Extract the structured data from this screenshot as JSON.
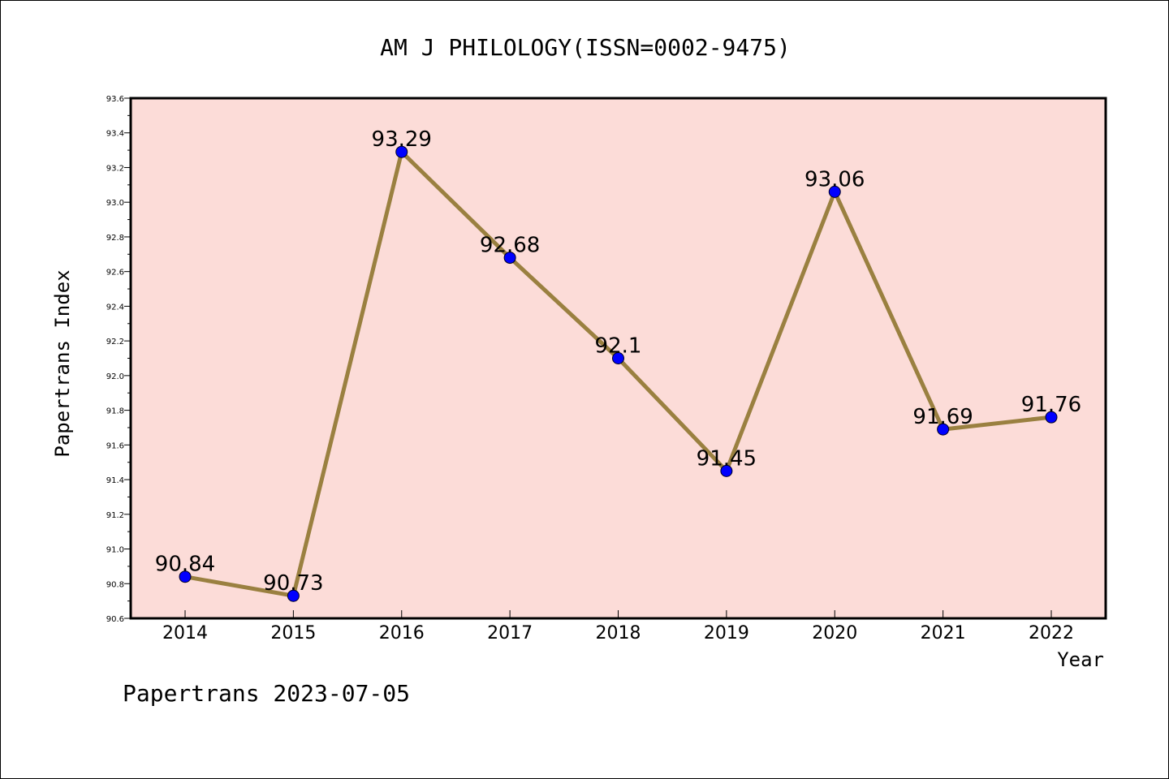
{
  "colors": {
    "plot_background": "#fcdcd8",
    "line": "#9a8040",
    "marker": "#0000ff",
    "frame": "#000000"
  },
  "footer": "Papertrans 2023-07-05",
  "chart_data": {
    "type": "line",
    "title": "AM J PHILOLOGY(ISSN=0002-9475)",
    "xlabel": "Year",
    "ylabel": "Papertrans Index",
    "categories": [
      "2014",
      "2015",
      "2016",
      "2017",
      "2018",
      "2019",
      "2020",
      "2021",
      "2022"
    ],
    "series": [
      {
        "values": [
          90.84,
          90.73,
          93.29,
          92.68,
          92.1,
          91.45,
          93.06,
          91.69,
          91.76
        ],
        "labels": [
          "90.84",
          "90.73",
          "93.29",
          "92.68",
          "92.1",
          "91.45",
          "93.06",
          "91.69",
          "91.76"
        ]
      }
    ],
    "ylim": [
      90.6,
      93.6
    ],
    "yticks": [
      "90.6",
      "90.8",
      "91.0",
      "91.2",
      "91.4",
      "91.6",
      "91.8",
      "92.0",
      "92.2",
      "92.4",
      "92.6",
      "92.8",
      "93.0",
      "93.2",
      "93.4",
      "93.6"
    ],
    "grid": false,
    "legend": "none"
  }
}
